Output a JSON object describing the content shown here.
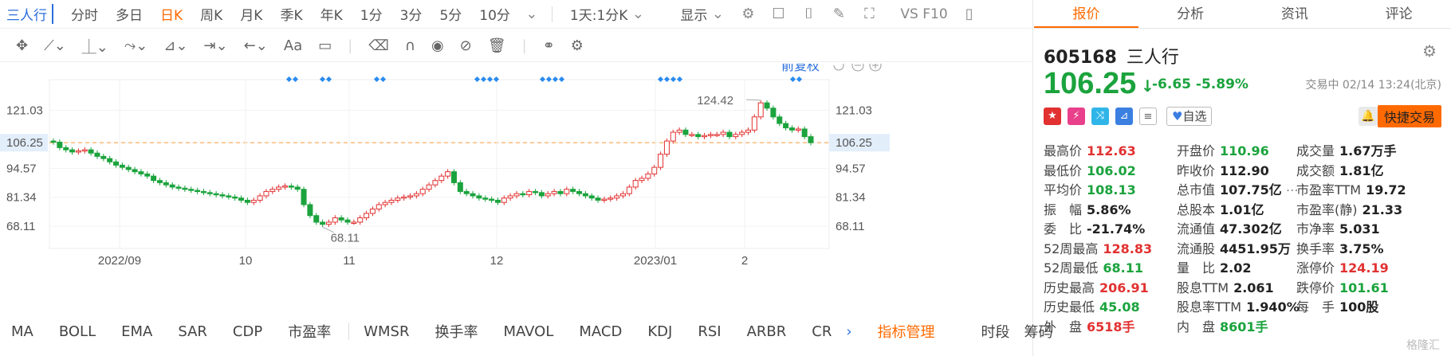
{
  "toolbar": {
    "stock": "三人行",
    "periods": [
      {
        "label": "分时",
        "active": false
      },
      {
        "label": "多日",
        "active": false
      },
      {
        "label": "日K",
        "active": true
      },
      {
        "label": "周K",
        "active": false
      },
      {
        "label": "月K",
        "active": false
      },
      {
        "label": "季K",
        "active": false
      },
      {
        "label": "年K",
        "active": false
      },
      {
        "label": "1分",
        "active": false
      },
      {
        "label": "3分",
        "active": false
      },
      {
        "label": "5分",
        "active": false
      },
      {
        "label": "10分",
        "active": false
      }
    ],
    "range": "1天:1分K",
    "display": "显示",
    "vs": "VS F10"
  },
  "draw_toolbar": {
    "text_tool": "Aa"
  },
  "chart": {
    "adjust_label": "前复权",
    "current_price": "106.25",
    "y_ticks": [
      "121.03",
      "106.25",
      "94.57",
      "81.34",
      "68.11"
    ],
    "x_labels": [
      "2022/09",
      "10",
      "11",
      "12",
      "2023/01",
      "2"
    ],
    "high_annot": "124.42",
    "low_annot": "68.11"
  },
  "chart_data": {
    "type": "candlestick",
    "ylim": [
      58,
      135
    ],
    "y_ticks": [
      121.03,
      106.25,
      94.57,
      81.34,
      68.11
    ],
    "closes": [
      106.5,
      104,
      103,
      102,
      102.5,
      103,
      101.5,
      100,
      99,
      97.5,
      96,
      95,
      94,
      93,
      92,
      91,
      89,
      88,
      87,
      86,
      85.5,
      85,
      84.5,
      84,
      83.5,
      83,
      82.5,
      82,
      81.5,
      81,
      80,
      79,
      80,
      82,
      84,
      85,
      86,
      86.5,
      86,
      85,
      78,
      73,
      70,
      69,
      70,
      72,
      71,
      70,
      70,
      72,
      74,
      76,
      78,
      79,
      80,
      81,
      81.5,
      82,
      83,
      85,
      87,
      89,
      91,
      93,
      88,
      84,
      83,
      82,
      81,
      80.5,
      80,
      79,
      81,
      82,
      83,
      82.5,
      84,
      83.5,
      82,
      83,
      84,
      83,
      85,
      84,
      83,
      82,
      81,
      80,
      80.5,
      81,
      82,
      83,
      86,
      89,
      90,
      92,
      95,
      101,
      107,
      111,
      112,
      110,
      110,
      109,
      109.5,
      110,
      110,
      111,
      109,
      110,
      111,
      112,
      118,
      124.42,
      122,
      118,
      115,
      113,
      112,
      112.5,
      109,
      106.25
    ],
    "x_labels": [
      "2022/09",
      "10",
      "11",
      "12",
      "2023/01",
      "2"
    ],
    "annotations": [
      {
        "label": "124.42"
      },
      {
        "label": "68.11"
      }
    ],
    "reference_line": 106.25
  },
  "indicators": [
    "MA",
    "BOLL",
    "EMA",
    "SAR",
    "CDP",
    "市盈率",
    "WMSR",
    "换手率",
    "MAVOL",
    "MACD",
    "KDJ",
    "RSI",
    "ARBR",
    "CR"
  ],
  "indicator_mgmt": "指标管理",
  "period_btns": [
    "时段",
    "筹码"
  ],
  "panel": {
    "tabs": [
      "报价",
      "分析",
      "资讯",
      "评论"
    ],
    "code": "605168",
    "name": "三人行",
    "price": "106.25",
    "change": "-6.65",
    "change_pct": "-5.89%",
    "status": "交易中 02/14 13:24(北京)",
    "self_select": "自选",
    "quick_trade": "快捷交易",
    "stats": [
      [
        {
          "l": "最高价",
          "v": "112.63",
          "c": "red"
        },
        {
          "l": "开盘价",
          "v": "110.96",
          "c": "green"
        },
        {
          "l": "成交量",
          "v": "1.67万手",
          "c": "blk"
        }
      ],
      [
        {
          "l": "最低价",
          "v": "106.02",
          "c": "green"
        },
        {
          "l": "昨收价",
          "v": "112.90",
          "c": "blk"
        },
        {
          "l": "成交额",
          "v": "1.81亿",
          "c": "blk"
        }
      ],
      [
        {
          "l": "平均价",
          "v": "108.13",
          "c": "green"
        },
        {
          "l": "总市值",
          "v": "107.75亿",
          "c": "blk"
        },
        {
          "l": "市盈率TTM",
          "v": "19.72",
          "c": "blk"
        }
      ],
      [
        {
          "l": "振　幅",
          "v": "5.86%",
          "c": "blk"
        },
        {
          "l": "总股本",
          "v": "1.01亿",
          "c": "blk"
        },
        {
          "l": "市盈率(静)",
          "v": "21.33",
          "c": "blk"
        }
      ],
      [
        {
          "l": "委　比",
          "v": "-21.74%",
          "c": "blk"
        },
        {
          "l": "流通值",
          "v": "47.302亿",
          "c": "blk"
        },
        {
          "l": "市净率",
          "v": "5.031",
          "c": "blk"
        }
      ],
      [
        {
          "l": "52周最高",
          "v": "128.83",
          "c": "red"
        },
        {
          "l": "流通股",
          "v": "4451.95万",
          "c": "blk"
        },
        {
          "l": "换手率",
          "v": "3.75%",
          "c": "blk"
        }
      ],
      [
        {
          "l": "52周最低",
          "v": "68.11",
          "c": "green"
        },
        {
          "l": "量　比",
          "v": "2.02",
          "c": "blk"
        },
        {
          "l": "涨停价",
          "v": "124.19",
          "c": "red"
        }
      ],
      [
        {
          "l": "历史最高",
          "v": "206.91",
          "c": "red"
        },
        {
          "l": "股息TTM",
          "v": "2.061",
          "c": "blk"
        },
        {
          "l": "跌停价",
          "v": "101.61",
          "c": "green"
        }
      ],
      [
        {
          "l": "历史最低",
          "v": "45.08",
          "c": "green"
        },
        {
          "l": "股息率TTM",
          "v": "1.940%",
          "c": "blk"
        },
        {
          "l": "每　手",
          "v": "100股",
          "c": "blk"
        }
      ],
      [
        {
          "l": "外　盘",
          "v": "6518手",
          "c": "red"
        },
        {
          "l": "内　盘",
          "v": "8601手",
          "c": "green"
        },
        {
          "l": "",
          "v": "",
          "c": "blk"
        }
      ]
    ],
    "watermark": "格隆汇"
  }
}
